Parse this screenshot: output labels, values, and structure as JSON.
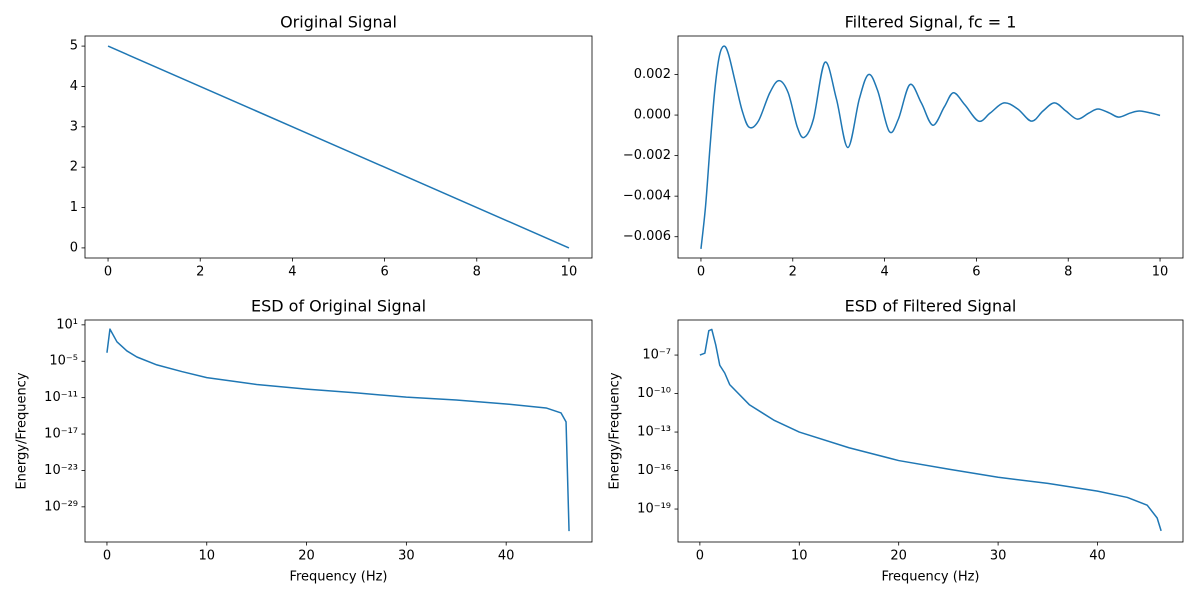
{
  "chart_data": [
    {
      "type": "line",
      "title": "Original Signal",
      "x": [
        0,
        10
      ],
      "values": [
        5,
        0
      ],
      "color": "#1f77b4",
      "xlim": [
        -0.5,
        10.5
      ],
      "xticks": [
        0,
        2,
        4,
        6,
        8,
        10
      ],
      "ylim": [
        -0.25,
        5.25
      ],
      "yticks": [
        0,
        1,
        2,
        3,
        4,
        5
      ]
    },
    {
      "type": "line",
      "title": "Filtered Signal, fc = 1",
      "x": [
        0,
        0.1,
        0.2,
        0.3,
        0.4,
        0.5,
        0.6,
        0.75,
        0.9,
        1.05,
        1.25,
        1.5,
        1.7,
        1.9,
        2.1,
        2.25,
        2.45,
        2.7,
        2.95,
        3.2,
        3.45,
        3.65,
        3.85,
        4.1,
        4.3,
        4.55,
        4.8,
        5.05,
        5.3,
        5.5,
        5.75,
        6.05,
        6.3,
        6.6,
        6.9,
        7.2,
        7.45,
        7.7,
        7.95,
        8.2,
        8.45,
        8.65,
        8.9,
        9.1,
        9.35,
        9.55,
        9.8,
        10
      ],
      "values": [
        -0.0066,
        -0.0045,
        -0.0015,
        0.0012,
        0.0029,
        0.0034,
        0.003,
        0.0016,
        0.0002,
        -0.0006,
        -0.0003,
        0.0011,
        0.0017,
        0.0011,
        -0.0006,
        -0.0011,
        -0.0002,
        0.0026,
        0.0008,
        -0.0016,
        0.0008,
        0.002,
        0.0012,
        -0.0008,
        -0.0002,
        0.0015,
        0.0006,
        -0.0005,
        0.0004,
        0.0011,
        0.0005,
        -0.0003,
        0.0001,
        0.0006,
        0.0003,
        -0.0003,
        0.0002,
        0.0006,
        0.0002,
        -0.0002,
        0.0001,
        0.0003,
        0.0001,
        -0.0001,
        0.0001,
        0.0002,
        0.0001,
        -2e-05
      ],
      "color": "#1f77b4",
      "xlim": [
        -0.5,
        10.5
      ],
      "xticks": [
        0,
        2,
        4,
        6,
        8,
        10
      ],
      "ylim": [
        -0.00705,
        0.0039
      ],
      "yticks": [
        {
          "value": -0.006,
          "label": "−0.006"
        },
        {
          "value": -0.004,
          "label": "−0.004"
        },
        {
          "value": -0.002,
          "label": "−0.002"
        },
        {
          "value": 0,
          "label": "0.000"
        },
        {
          "value": 0.002,
          "label": "0.002"
        }
      ]
    },
    {
      "type": "line",
      "title": "ESD of Original Signal",
      "xlabel": "Frequency (Hz)",
      "ylabel": "Energy/Frequency",
      "yscale": "log",
      "x": [
        0,
        0.3,
        1,
        2,
        3,
        5,
        7.5,
        10,
        15,
        20,
        25,
        30,
        35,
        40,
        44,
        45.5,
        46,
        46.3
      ],
      "values": [
        0.00025,
        2,
        0.016,
        0.0005,
        5e-05,
        2.5e-06,
        2e-07,
        2e-08,
        1.5e-09,
        2.5e-10,
        6e-11,
        1.2e-11,
        4e-12,
        9e-13,
        2e-13,
        3e-14,
        1e-15,
        1e-33
      ],
      "color": "#1f77b4",
      "xlim": [
        -2.2,
        48.6
      ],
      "xticks": [
        0,
        10,
        20,
        30,
        40
      ],
      "ylim": [
        1.6e-35,
        63
      ],
      "yticks": [
        {
          "value": 1e-29,
          "label": "10⁻²⁹"
        },
        {
          "value": 1e-23,
          "label": "10⁻²³"
        },
        {
          "value": 1e-17,
          "label": "10⁻¹⁷"
        },
        {
          "value": 1e-11,
          "label": "10⁻¹¹"
        },
        {
          "value": 1e-05,
          "label": "10⁻⁵"
        },
        {
          "value": 10,
          "label": "10¹"
        }
      ]
    },
    {
      "type": "line",
      "title": "ESD of Filtered Signal",
      "xlabel": "Frequency (Hz)",
      "ylabel": "Energy/Frequency",
      "yscale": "log",
      "x": [
        0,
        0.5,
        0.9,
        1.2,
        1.6,
        2,
        2.5,
        3,
        5,
        7.5,
        10,
        15,
        20,
        25,
        30,
        35,
        40,
        43,
        45,
        46,
        46.4
      ],
      "values": [
        1e-07,
        1.4e-07,
        8e-06,
        1e-05,
        6e-07,
        1.6e-08,
        4e-09,
        5e-10,
        1.3e-11,
        8e-13,
        1e-13,
        6e-15,
        6e-16,
        1.3e-16,
        3e-17,
        1e-17,
        2.5e-18,
        8e-19,
        2e-19,
        2e-20,
        2e-21
      ],
      "color": "#1f77b4",
      "xlim": [
        -2.2,
        48.6
      ],
      "xticks": [
        0,
        10,
        20,
        30,
        40
      ],
      "ylim": [
        2.7e-22,
        5.4e-05
      ],
      "yticks": [
        {
          "value": 1e-19,
          "label": "10⁻¹⁹"
        },
        {
          "value": 1e-16,
          "label": "10⁻¹⁶"
        },
        {
          "value": 1e-13,
          "label": "10⁻¹³"
        },
        {
          "value": 1e-10,
          "label": "10⁻¹⁰"
        },
        {
          "value": 1e-07,
          "label": "10⁻⁷"
        }
      ]
    }
  ]
}
